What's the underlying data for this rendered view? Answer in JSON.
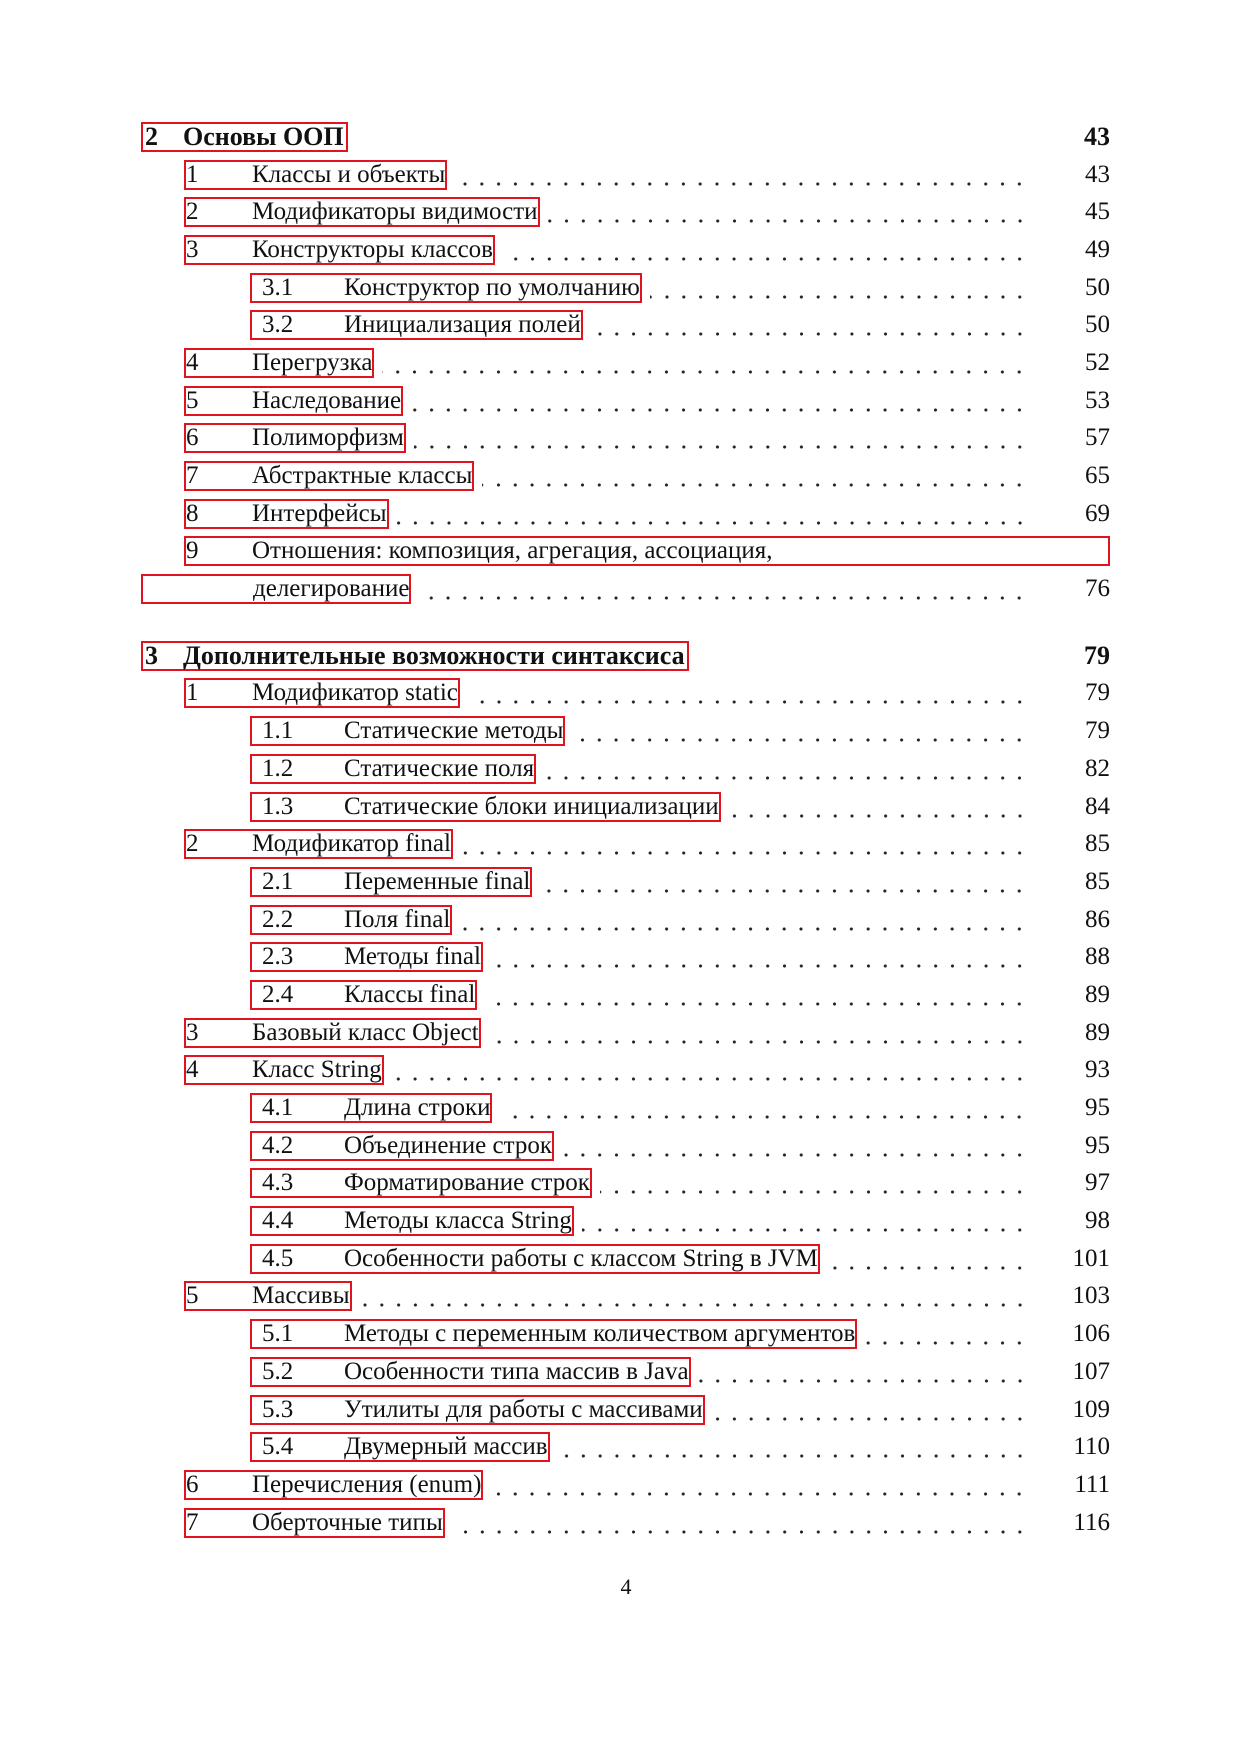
{
  "toc": [
    {
      "type": "chapter",
      "num": "2",
      "title": "Основы ООП",
      "page": "43"
    },
    {
      "level": 1,
      "num": "1",
      "title": "Классы и объекты",
      "page": "43"
    },
    {
      "level": 1,
      "num": "2",
      "title": "Модификаторы видимости",
      "page": "45"
    },
    {
      "level": 1,
      "num": "3",
      "title": "Конструкторы классов",
      "page": "49"
    },
    {
      "level": 2,
      "num": "3.1",
      "title": "Конструктор по умолчанию",
      "page": "50"
    },
    {
      "level": 2,
      "num": "3.2",
      "title": "Инициализация полей",
      "page": "50"
    },
    {
      "level": 1,
      "num": "4",
      "title": "Перегрузка",
      "page": "52"
    },
    {
      "level": 1,
      "num": "5",
      "title": "Наследование",
      "page": "53"
    },
    {
      "level": 1,
      "num": "6",
      "title": "Полиморфизм",
      "page": "57"
    },
    {
      "level": 1,
      "num": "7",
      "title": "Абстрактные классы",
      "page": "65"
    },
    {
      "level": 1,
      "num": "8",
      "title": "Интерфейсы",
      "page": "69"
    },
    {
      "level": 1,
      "num": "9",
      "title": "Отношения: композиция, агрегация, ассоциация,",
      "title_cont": "делегирование",
      "page": "76"
    },
    {
      "type": "chapter",
      "num": "3",
      "title": "Дополнительные возможности синтаксиса",
      "page": "79"
    },
    {
      "level": 1,
      "num": "1",
      "title": "Модификатор static",
      "page": "79"
    },
    {
      "level": 2,
      "num": "1.1",
      "title": "Статические методы",
      "page": "79"
    },
    {
      "level": 2,
      "num": "1.2",
      "title": "Статические поля",
      "page": "82"
    },
    {
      "level": 2,
      "num": "1.3",
      "title": "Статические блоки инициализации",
      "page": "84"
    },
    {
      "level": 1,
      "num": "2",
      "title": "Модификатор final",
      "page": "85"
    },
    {
      "level": 2,
      "num": "2.1",
      "title": "Переменные final",
      "page": "85"
    },
    {
      "level": 2,
      "num": "2.2",
      "title": "Поля final",
      "page": "86"
    },
    {
      "level": 2,
      "num": "2.3",
      "title": "Методы final",
      "page": "88"
    },
    {
      "level": 2,
      "num": "2.4",
      "title": "Классы final",
      "page": "89"
    },
    {
      "level": 1,
      "num": "3",
      "title": "Базовый класс Object",
      "page": "89"
    },
    {
      "level": 1,
      "num": "4",
      "title": "Класс String",
      "page": "93"
    },
    {
      "level": 2,
      "num": "4.1",
      "title": "Длина строки",
      "page": "95"
    },
    {
      "level": 2,
      "num": "4.2",
      "title": "Объединение строк",
      "page": "95"
    },
    {
      "level": 2,
      "num": "4.3",
      "title": "Форматирование строк",
      "page": "97"
    },
    {
      "level": 2,
      "num": "4.4",
      "title": "Методы класса String",
      "page": "98"
    },
    {
      "level": 2,
      "num": "4.5",
      "title": "Особенности работы с классом String в JVM",
      "page": "101"
    },
    {
      "level": 1,
      "num": "5",
      "title": "Массивы",
      "page": "103"
    },
    {
      "level": 2,
      "num": "5.1",
      "title": "Методы с переменным количеством аргументов",
      "page": "106"
    },
    {
      "level": 2,
      "num": "5.2",
      "title": "Особенности типа массив в Java",
      "page": "107"
    },
    {
      "level": 2,
      "num": "5.3",
      "title": "Утилиты для работы с массивами",
      "page": "109"
    },
    {
      "level": 2,
      "num": "5.4",
      "title": "Двумерный массив",
      "page": "110"
    },
    {
      "level": 1,
      "num": "6",
      "title": "Перечисления (enum)",
      "page": "111"
    },
    {
      "level": 1,
      "num": "7",
      "title": "Оберточные типы",
      "page": "116"
    }
  ],
  "footer": {
    "page_number": "4"
  },
  "colors": {
    "link_border": "#e0141e"
  }
}
